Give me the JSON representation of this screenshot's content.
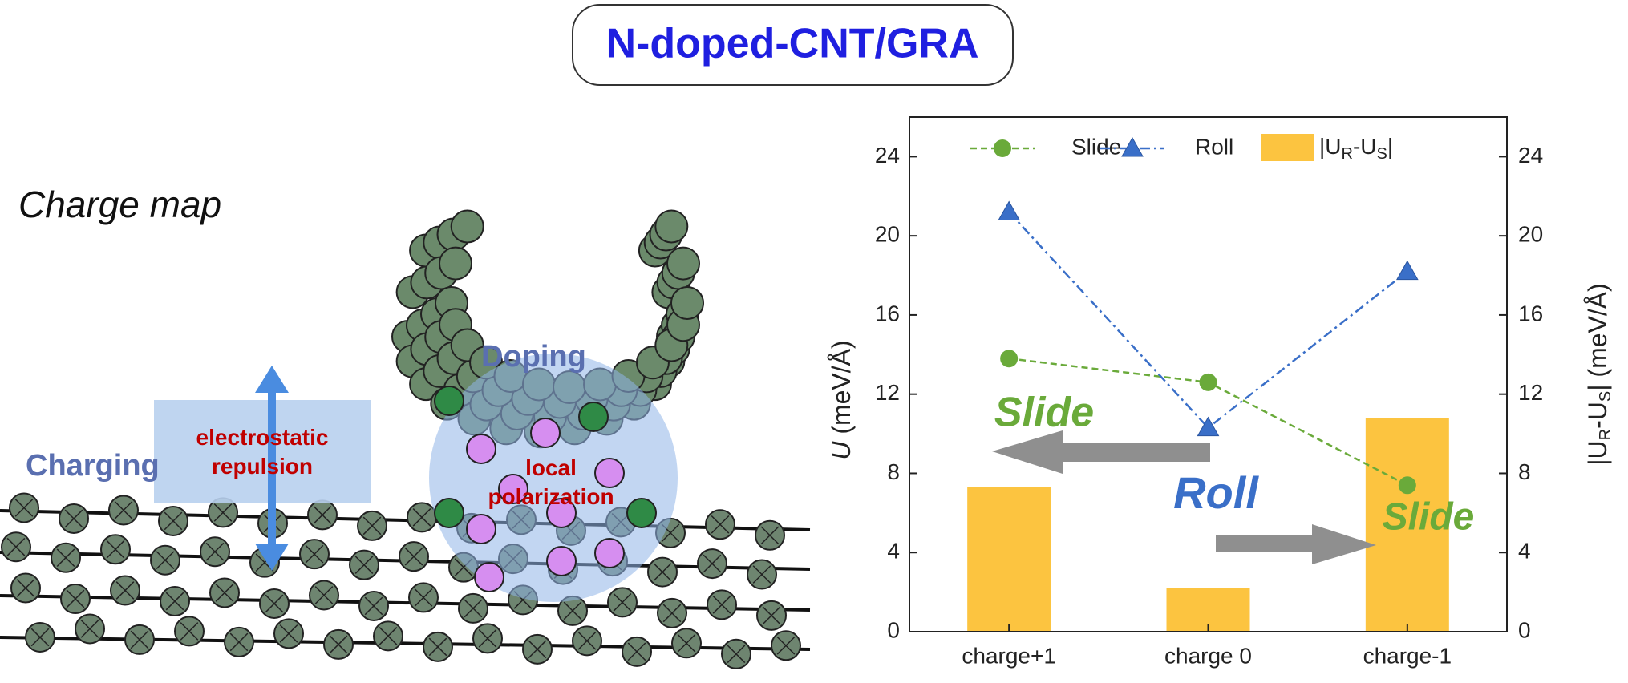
{
  "title": "N-doped-CNT/GRA",
  "illustration": {
    "heading": "Charge map",
    "charging": "Charging",
    "repulsion": [
      "electrostatic",
      "repulsion"
    ],
    "doping": "Doping",
    "polarization": [
      "local",
      "polarization"
    ]
  },
  "chart_data": {
    "type": "bar_line",
    "categories": [
      "charge+1",
      "charge 0",
      "charge-1"
    ],
    "ylabel": {
      "symbol": "U",
      "unit": "(meV/Å)"
    },
    "y2label": [
      "|U",
      "R",
      "-U",
      "S",
      "|  (meV/Å)"
    ],
    "ylim": [
      0,
      26
    ],
    "yticks": [
      0,
      4,
      8,
      12,
      16,
      20,
      24
    ],
    "y2lim": [
      0,
      26
    ],
    "y2ticks": [
      0,
      4,
      8,
      12,
      16,
      20,
      24
    ],
    "series": [
      {
        "name": "Slide",
        "type": "line",
        "color": "#6aaa3a",
        "values": [
          13.8,
          12.6,
          7.4
        ]
      },
      {
        "name": "Roll",
        "type": "line",
        "color": "#3a6fc8",
        "values": [
          21.2,
          10.3,
          18.2
        ]
      },
      {
        "name": [
          "|U",
          "R",
          "-U",
          "S",
          "|"
        ],
        "type": "bar",
        "axis": "y2",
        "color": "#fcc440",
        "values": [
          7.3,
          2.2,
          10.8
        ]
      }
    ],
    "annotations": [
      {
        "text": "Slide",
        "color": "#6aaa3a"
      },
      {
        "text": "Roll",
        "color": "#3a6fc8"
      },
      {
        "text": "Slide",
        "color": "#6aaa3a"
      }
    ]
  }
}
